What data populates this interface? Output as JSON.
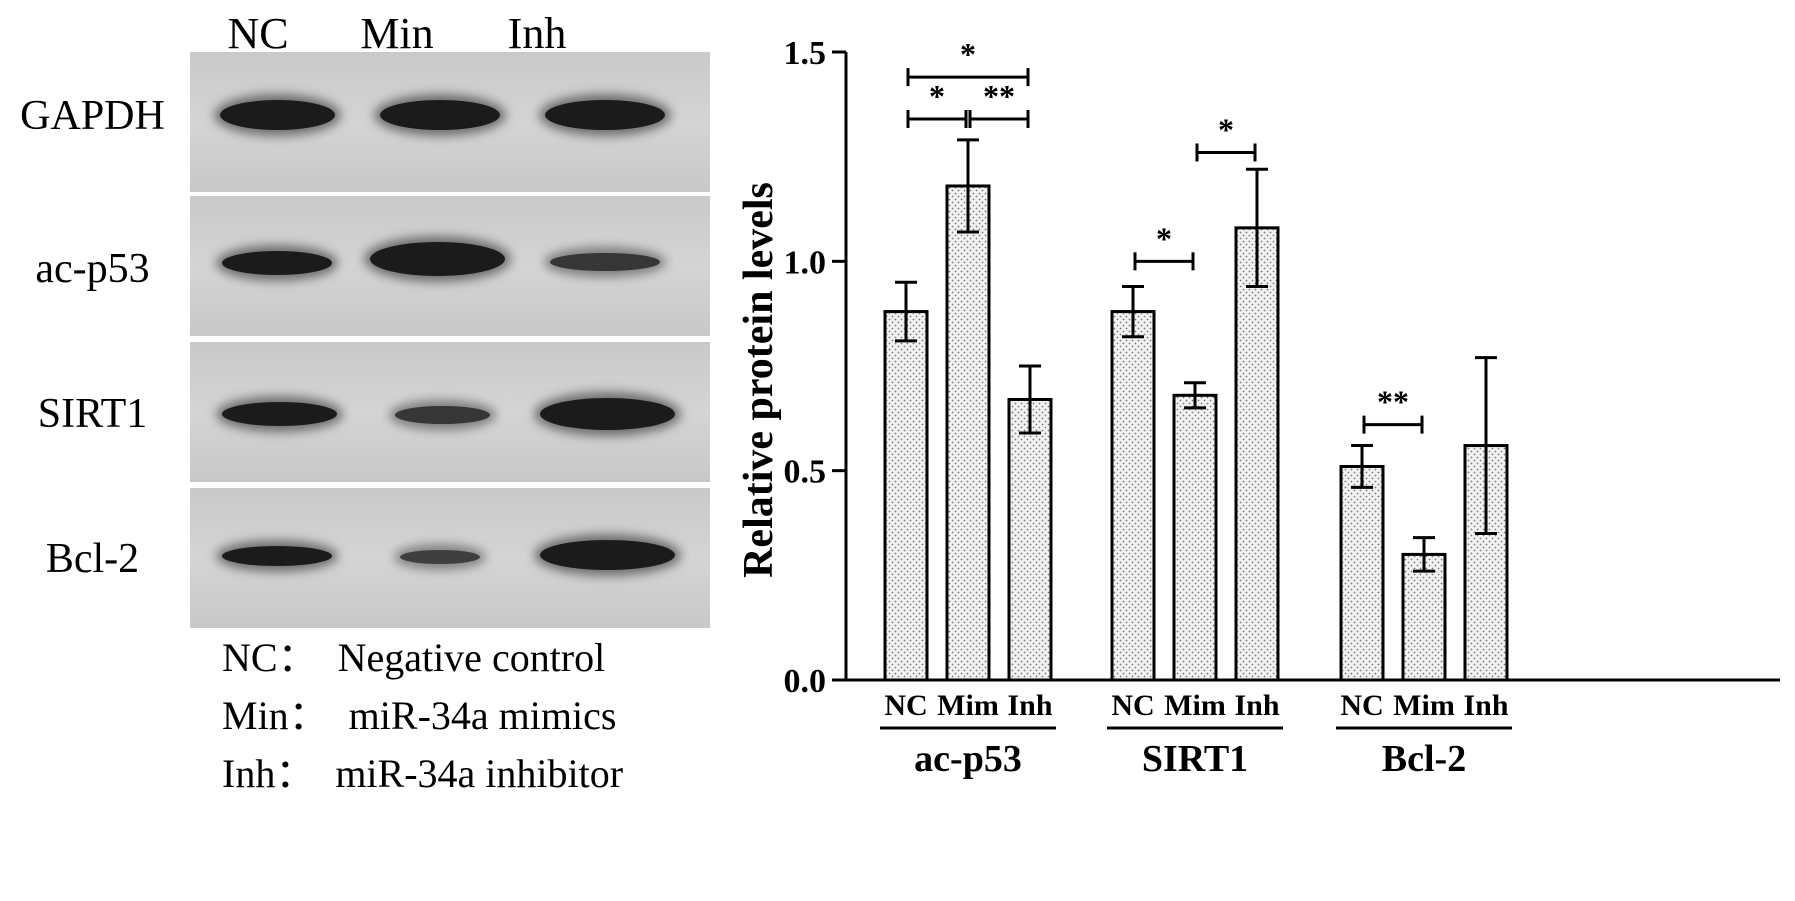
{
  "blot": {
    "lanes": [
      "NC",
      "Min",
      "Inh"
    ],
    "proteins": [
      "GAPDH",
      "ac-p53",
      "SIRT1",
      "Bcl-2"
    ],
    "legend": [
      "NC：  Negative control",
      "Min：  miR-34a mimics",
      "Inh：  miR-34a inhibitor"
    ]
  },
  "chart_data": {
    "type": "bar",
    "ylabel": "Relative protein levels",
    "ylim": [
      0,
      1.5
    ],
    "yticks": [
      "0.0",
      "0.5",
      "1.0",
      "1.5"
    ],
    "groups": [
      "ac-p53",
      "SIRT1",
      "Bcl-2"
    ],
    "categories": [
      "NC",
      "Mim",
      "Inh"
    ],
    "values": [
      [
        0.88,
        1.18,
        0.67
      ],
      [
        0.88,
        0.68,
        1.08
      ],
      [
        0.51,
        0.3,
        0.56
      ]
    ],
    "errors": [
      [
        0.07,
        0.11,
        0.08
      ],
      [
        0.06,
        0.03,
        0.14
      ],
      [
        0.05,
        0.04,
        0.21
      ]
    ],
    "significance": [
      {
        "group": 0,
        "from": 0,
        "to": 2,
        "label": "*",
        "y": 1.44
      },
      {
        "group": 0,
        "from": 0,
        "to": 1,
        "label": "*",
        "y": 1.34
      },
      {
        "group": 0,
        "from": 1,
        "to": 2,
        "label": "**",
        "y": 1.34
      },
      {
        "group": 1,
        "from": 0,
        "to": 1,
        "label": "*",
        "y": 1.0
      },
      {
        "group": 1,
        "from": 1,
        "to": 2,
        "label": "*",
        "y": 1.26
      },
      {
        "group": 2,
        "from": 0,
        "to": 1,
        "label": "**",
        "y": 0.61
      }
    ]
  }
}
